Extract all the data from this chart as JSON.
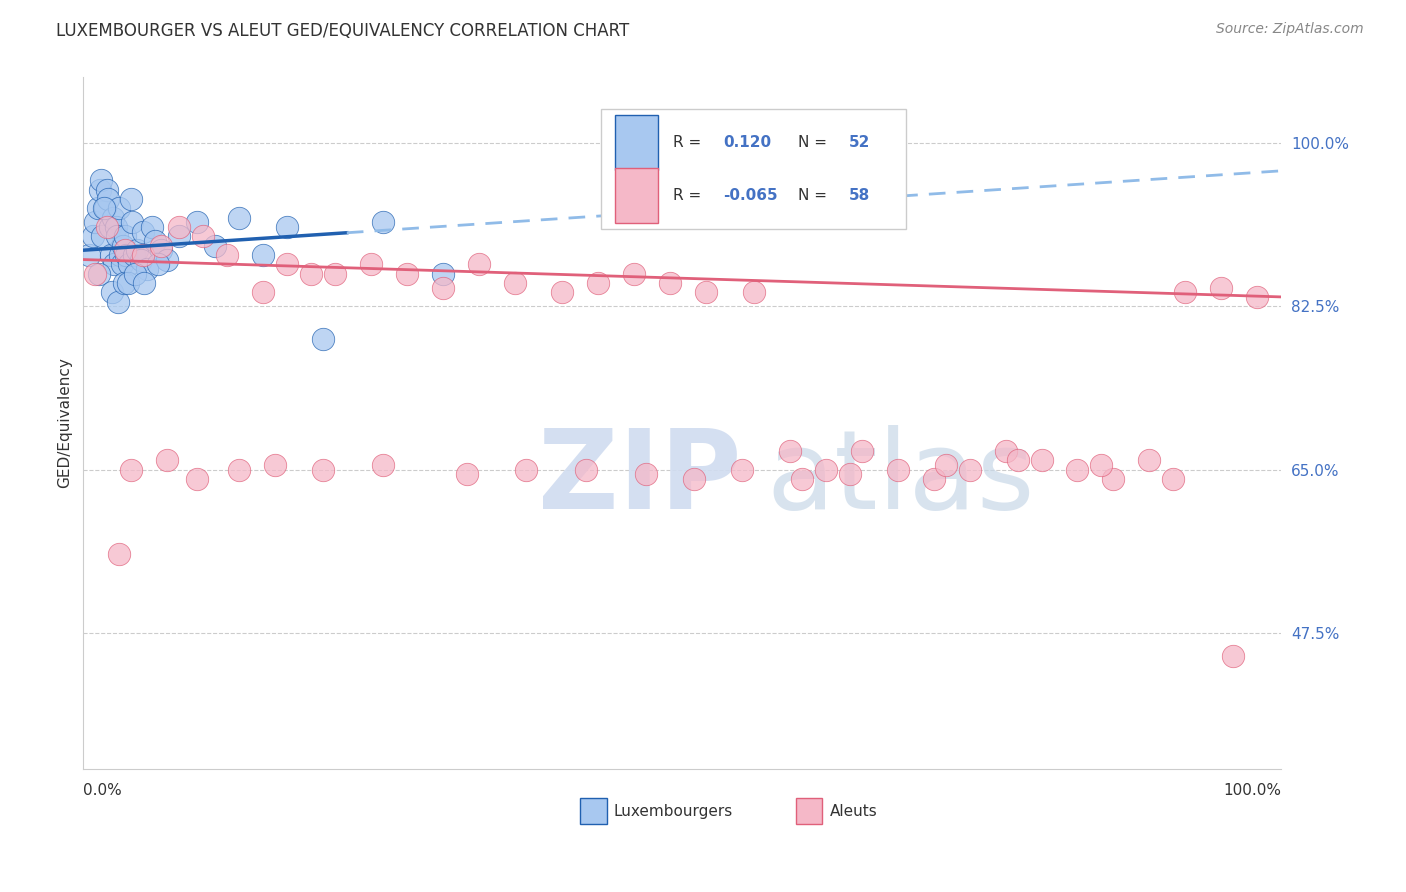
{
  "title": "LUXEMBOURGER VS ALEUT GED/EQUIVALENCY CORRELATION CHART",
  "source": "Source: ZipAtlas.com",
  "ylabel": "GED/Equivalency",
  "y_ticks": [
    47.5,
    65.0,
    82.5,
    100.0
  ],
  "y_tick_labels": [
    "47.5%",
    "65.0%",
    "82.5%",
    "100.0%"
  ],
  "x_range": [
    0.0,
    100.0
  ],
  "y_range": [
    33.0,
    107.0
  ],
  "blue_R": 0.12,
  "blue_N": 52,
  "pink_R": -0.065,
  "pink_N": 58,
  "blue_color": "#A8C8F0",
  "pink_color": "#F5B8C8",
  "trend_blue_solid_color": "#2060B0",
  "trend_blue_dash_color": "#90BBE8",
  "trend_pink_color": "#E0607A",
  "blue_scatter_x": [
    0.5,
    0.8,
    1.0,
    1.2,
    1.4,
    1.5,
    1.6,
    1.8,
    2.0,
    2.1,
    2.2,
    2.3,
    2.5,
    2.6,
    2.7,
    2.8,
    3.0,
    3.1,
    3.2,
    3.3,
    3.5,
    3.6,
    3.8,
    4.0,
    4.1,
    4.2,
    4.5,
    4.8,
    5.0,
    5.3,
    5.7,
    6.0,
    6.5,
    7.0,
    8.0,
    9.5,
    11.0,
    13.0,
    15.0,
    17.0,
    20.0,
    25.0,
    30.0,
    1.3,
    1.7,
    2.4,
    2.9,
    3.4,
    3.7,
    4.3,
    5.1,
    6.2
  ],
  "blue_scatter_y": [
    88.0,
    90.0,
    91.5,
    93.0,
    95.0,
    96.0,
    90.0,
    93.0,
    95.0,
    94.0,
    91.0,
    88.0,
    92.0,
    87.0,
    91.0,
    90.0,
    93.0,
    88.0,
    87.0,
    89.0,
    90.0,
    88.0,
    87.0,
    94.0,
    91.5,
    88.0,
    88.5,
    87.5,
    90.5,
    86.5,
    91.0,
    89.5,
    88.5,
    87.5,
    90.0,
    91.5,
    89.0,
    92.0,
    88.0,
    91.0,
    79.0,
    91.5,
    86.0,
    86.0,
    93.0,
    84.0,
    83.0,
    85.0,
    85.0,
    86.0,
    85.0,
    87.0
  ],
  "pink_scatter_x": [
    1.0,
    2.0,
    3.5,
    5.0,
    6.5,
    8.0,
    10.0,
    12.0,
    15.0,
    17.0,
    19.0,
    21.0,
    24.0,
    27.0,
    30.0,
    33.0,
    36.0,
    40.0,
    43.0,
    46.0,
    49.0,
    52.0,
    56.0,
    59.0,
    62.0,
    65.0,
    68.0,
    71.0,
    74.0,
    77.0,
    80.0,
    83.0,
    86.0,
    89.0,
    92.0,
    95.0,
    98.0,
    4.0,
    7.0,
    9.5,
    13.0,
    16.0,
    20.0,
    25.0,
    32.0,
    37.0,
    42.0,
    47.0,
    51.0,
    55.0,
    60.0,
    64.0,
    72.0,
    78.0,
    85.0,
    91.0,
    96.0,
    3.0
  ],
  "pink_scatter_y": [
    86.0,
    91.0,
    88.5,
    88.0,
    89.0,
    91.0,
    90.0,
    88.0,
    84.0,
    87.0,
    86.0,
    86.0,
    87.0,
    86.0,
    84.5,
    87.0,
    85.0,
    84.0,
    85.0,
    86.0,
    85.0,
    84.0,
    84.0,
    67.0,
    65.0,
    67.0,
    65.0,
    64.0,
    65.0,
    67.0,
    66.0,
    65.0,
    64.0,
    66.0,
    84.0,
    84.5,
    83.5,
    65.0,
    66.0,
    64.0,
    65.0,
    65.5,
    65.0,
    65.5,
    64.5,
    65.0,
    65.0,
    64.5,
    64.0,
    65.0,
    64.0,
    64.5,
    65.5,
    66.0,
    65.5,
    64.0,
    45.0,
    56.0
  ],
  "blue_trend_x0": 0.0,
  "blue_trend_x_solid_end": 22.0,
  "blue_trend_x1": 100.0,
  "blue_trend_y_at_0": 88.5,
  "blue_trend_y_at_100": 97.0,
  "pink_trend_x0": 0.0,
  "pink_trend_x1": 100.0,
  "pink_trend_y_at_0": 87.5,
  "pink_trend_y_at_100": 83.5
}
